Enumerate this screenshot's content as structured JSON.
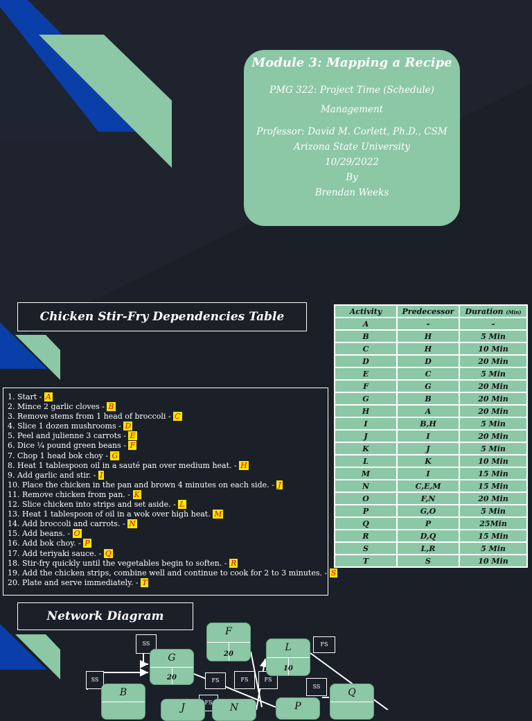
{
  "title_card": {
    "title": "Module 3: Mapping a Recipe",
    "course_line1": "PMG 322: Project Time (Schedule)",
    "course_line2": "Management",
    "professor": "Professor: David M. Corlett, Ph.D., CSM",
    "university": "Arizona State University",
    "date": "10/29/2022",
    "by": "By",
    "author": "Brendan Weeks"
  },
  "dependencies_title": "Chicken Stir-Fry Dependencies Table",
  "table": {
    "headers": {
      "activity": "Activity",
      "predecessor": "Predecessor",
      "duration": "Duration",
      "duration_unit": "(Min)"
    },
    "rows": [
      {
        "activity": "A",
        "predecessor": "–",
        "duration": "–"
      },
      {
        "activity": "B",
        "predecessor": "H",
        "duration": "5 Min"
      },
      {
        "activity": "C",
        "predecessor": "H",
        "duration": "10 Min"
      },
      {
        "activity": "D",
        "predecessor": "D",
        "duration": "20 Min"
      },
      {
        "activity": "E",
        "predecessor": "C",
        "duration": "5 Min"
      },
      {
        "activity": "F",
        "predecessor": "G",
        "duration": "20 Min"
      },
      {
        "activity": "G",
        "predecessor": "B",
        "duration": "20 Min"
      },
      {
        "activity": "H",
        "predecessor": "A",
        "duration": "20 Min"
      },
      {
        "activity": "I",
        "predecessor": "B,H",
        "duration": "5 Min"
      },
      {
        "activity": "J",
        "predecessor": "I",
        "duration": "20 Min"
      },
      {
        "activity": "K",
        "predecessor": "J",
        "duration": "5 Min"
      },
      {
        "activity": "L",
        "predecessor": "K",
        "duration": "10 Min"
      },
      {
        "activity": "M",
        "predecessor": "I",
        "duration": "15 Min"
      },
      {
        "activity": "N",
        "predecessor": "C,E,M",
        "duration": "15 Min"
      },
      {
        "activity": "O",
        "predecessor": "F,N",
        "duration": "20 Min"
      },
      {
        "activity": "P",
        "predecessor": "G,O",
        "duration": "5 Min"
      },
      {
        "activity": "Q",
        "predecessor": "P",
        "duration": "25Min"
      },
      {
        "activity": "R",
        "predecessor": "D,Q",
        "duration": "15 Min"
      },
      {
        "activity": "S",
        "predecessor": "L,R",
        "duration": "5 Min"
      },
      {
        "activity": "T",
        "predecessor": "S",
        "duration": "10 Min"
      }
    ]
  },
  "steps": [
    {
      "text": "1. Start - ",
      "tag": "A"
    },
    {
      "text": "2. Mince 2 garlic cloves - ",
      "tag": "B"
    },
    {
      "text": "3. Remove stems from 1 head of broccoli - ",
      "tag": "C"
    },
    {
      "text": "4. Slice 1 dozen mushrooms - ",
      "tag": "D"
    },
    {
      "text": "5. Peel and julienne 3 carrots - ",
      "tag": "E"
    },
    {
      "text": "6. Dice ¼ pound green beans - ",
      "tag": "F"
    },
    {
      "text": "7. Chop 1 head bok choy - ",
      "tag": "G"
    },
    {
      "text": "8. Heat 1 tablespoon oil in a sauté pan over medium heat. - ",
      "tag": "H"
    },
    {
      "text": "9. Add garlic and stir. - ",
      "tag": "I"
    },
    {
      "text": "10. Place the chicken in the pan and brown 4 minutes on each side. - ",
      "tag": "J"
    },
    {
      "text": "11. Remove chicken from pan. - ",
      "tag": "K"
    },
    {
      "text": "12. Slice chicken into strips and set aside. - ",
      "tag": "L"
    },
    {
      "text": "13. Heat 1 tablespoon of oil in a wok over high heat. ",
      "tag": "M"
    },
    {
      "text": "14. Add broccoli and carrots. - ",
      "tag": "N"
    },
    {
      "text": "15. Add beans. - ",
      "tag": "O"
    },
    {
      "text": "16. Add bok choy. - ",
      "tag": "P"
    },
    {
      "text": "17. Add teriyaki sauce. - ",
      "tag": "Q"
    },
    {
      "text": "18. Stir-fry quickly until the vegetables begin to soften. - ",
      "tag": "R"
    },
    {
      "text": "19. Add the chicken strips, combine well and continue to cook for 2 to 3 minutes. - ",
      "tag": "S"
    },
    {
      "text": "20. Plate and serve immediately. - ",
      "tag": "T"
    }
  ],
  "network_title": "Network Diagram",
  "network": {
    "nodes": {
      "F": {
        "label": "F",
        "duration": "20"
      },
      "G": {
        "label": "G",
        "duration": "20"
      },
      "L": {
        "label": "L",
        "duration": "10"
      },
      "B": {
        "label": "B",
        "duration": ""
      },
      "J": {
        "label": "J",
        "duration": ""
      },
      "N": {
        "label": "N",
        "duration": ""
      },
      "P": {
        "label": "P",
        "duration": ""
      },
      "Q": {
        "label": "Q",
        "duration": ""
      }
    },
    "links": {
      "ss": "SS",
      "fs": "FS"
    }
  },
  "colors": {
    "background": "#1b1f28",
    "green": "#8cc7a6",
    "blue": "#0a3ea8",
    "highlight": "#ffe600"
  }
}
